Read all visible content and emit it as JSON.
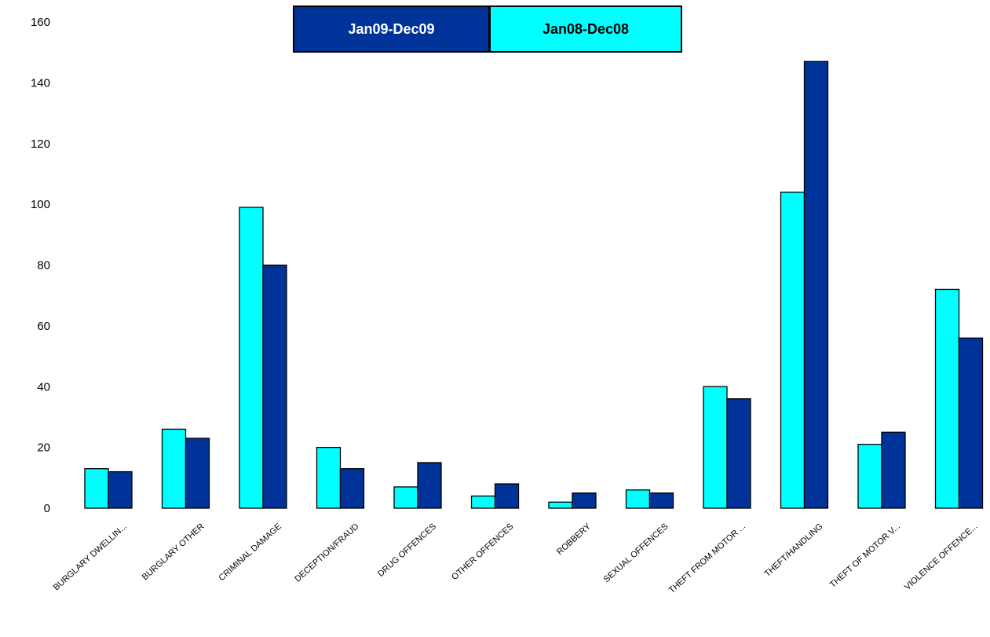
{
  "chart_data": {
    "type": "bar",
    "categories": [
      "BURGLARY DWELLIN...",
      "BURGLARY OTHER",
      "CRIMINAL DAMAGE",
      "DECEPTION/FRAUD",
      "DRUG OFFENCES",
      "OTHER OFFENCES",
      "ROBBERY",
      "SEXUAL OFFENCES",
      "THEFT FROM MOTOR ...",
      "THEFT/HANDLING",
      "THEFT OF MOTOR V...",
      "VIOLENCE OFFENCE..."
    ],
    "series": [
      {
        "name": "Jan08-Dec08",
        "color": "#00ffff",
        "values": [
          13,
          26,
          99,
          20,
          7,
          4,
          2,
          6,
          40,
          104,
          21,
          72
        ]
      },
      {
        "name": "Jan09-Dec09",
        "color": "#003399",
        "values": [
          12,
          23,
          80,
          13,
          15,
          8,
          5,
          5,
          36,
          147,
          25,
          56
        ]
      }
    ],
    "ylim": [
      0,
      160
    ],
    "yticks": [
      0,
      20,
      40,
      60,
      80,
      100,
      120,
      140,
      160
    ],
    "grid": false,
    "legend": {
      "position": "top-center",
      "items": [
        {
          "label": "Jan09-Dec09",
          "bg": "#003399",
          "fg": "#ffffff"
        },
        {
          "label": "Jan08-Dec08",
          "bg": "#00ffff",
          "fg": "#000000"
        }
      ]
    },
    "title": "",
    "xlabel": "",
    "ylabel": ""
  }
}
